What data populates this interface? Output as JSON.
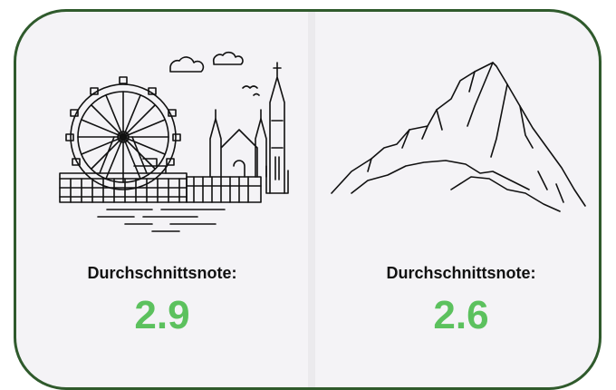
{
  "cards": [
    {
      "label": "Durchschnittsnote:",
      "value": 2.9
    },
    {
      "label": "Durchschnittsnote:",
      "value": 2.6
    }
  ]
}
